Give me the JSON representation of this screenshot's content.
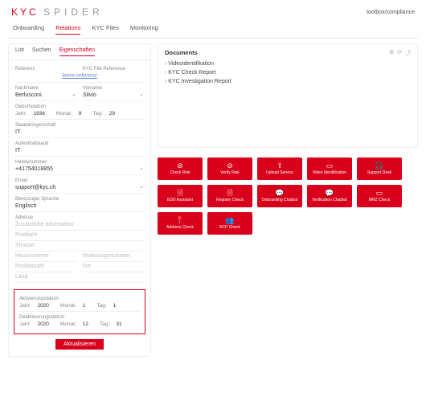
{
  "header": {
    "logo_kyc": "KYC",
    "logo_spider": "SPIDER",
    "toolbox": "toolbox/compliance"
  },
  "main_tabs": [
    "Onboarding",
    "Relations",
    "KYC Files",
    "Monitoring"
  ],
  "main_tab_active": 1,
  "sub_tabs": [
    "List",
    "Suchen",
    "Eigenschaften"
  ],
  "sub_tab_active": 2,
  "form": {
    "referenz_label": "Referenz",
    "kyc_file_ref_label": "KYC File Reference",
    "kyc_file_ref_link": "leere-referenz",
    "nachname_label": "Nachname",
    "nachname": "Berlusconi",
    "vorname_label": "Vorname",
    "vorname": "Silvio",
    "geburtsdatum_label": "Geburtsdatum",
    "geb_jahr_lbl": "Jahr:",
    "geb_jahr": "1936",
    "geb_monat_lbl": "Monat:",
    "geb_monat": "9",
    "geb_tag_lbl": "Tag:",
    "geb_tag": "29",
    "staat_label": "Staatsbürgerschaft",
    "staat": "IT",
    "aufenthalt_label": "Aufenthaltsland",
    "aufenthalt": "IT",
    "handy_label": "Handynummer",
    "handy": "+41754018855",
    "email_label": "Email",
    "email": "support@kyc.ch",
    "sprache_label": "Bevorzugte Sprache",
    "sprache": "Englisch",
    "adresse_label": "Adresse",
    "zusatz": "Zusätzliche Information",
    "postfach": "Postfach",
    "strasse": "Strasse",
    "hausnr": "Hausnummer",
    "wohnnr": "Wohnungsnummer",
    "plz": "Postleitzahl",
    "ort": "Ort",
    "land": "Land",
    "aktiv_label": "Aktivierungsdatum",
    "aktiv_jahr": "2020",
    "aktiv_monat": "1",
    "aktiv_tag": "1",
    "deaktiv_label": "Deaktivierungsdatum",
    "deaktiv_jahr": "2020",
    "deaktiv_monat": "12",
    "deaktiv_tag": "31",
    "jahr_lbl": "Jahr:",
    "monat_lbl": "Monat:",
    "tag_lbl": "Tag:",
    "update_btn": "Aktualisieren"
  },
  "documents": {
    "title": "Documents",
    "items": [
      "Videoidentifikation",
      "KYC Check Report",
      "KYC Investigation Report"
    ]
  },
  "actions": {
    "row1": [
      {
        "icon": "⊘",
        "label": "Check Risk"
      },
      {
        "icon": "⊘",
        "label": "Verify Risk"
      },
      {
        "icon": "⇪",
        "label": "Upload Service"
      },
      {
        "icon": "▭",
        "label": "Video Identification"
      },
      {
        "icon": "🎧",
        "label": "Support Desk"
      }
    ],
    "row2": [
      {
        "icon": "🗎",
        "label": "EDD Assistant"
      },
      {
        "icon": "🗎",
        "label": "Registry Check"
      },
      {
        "icon": "💬",
        "label": "Onboarding Chatbot"
      },
      {
        "icon": "💬",
        "label": "Verification Chatbot"
      },
      {
        "icon": "▭",
        "label": "MRZ Check"
      }
    ],
    "row3": [
      {
        "icon": "📍",
        "label": "Address Check"
      },
      {
        "icon": "👥",
        "label": "BCP Check"
      }
    ]
  },
  "colors": {
    "brand": "#d9001b"
  }
}
